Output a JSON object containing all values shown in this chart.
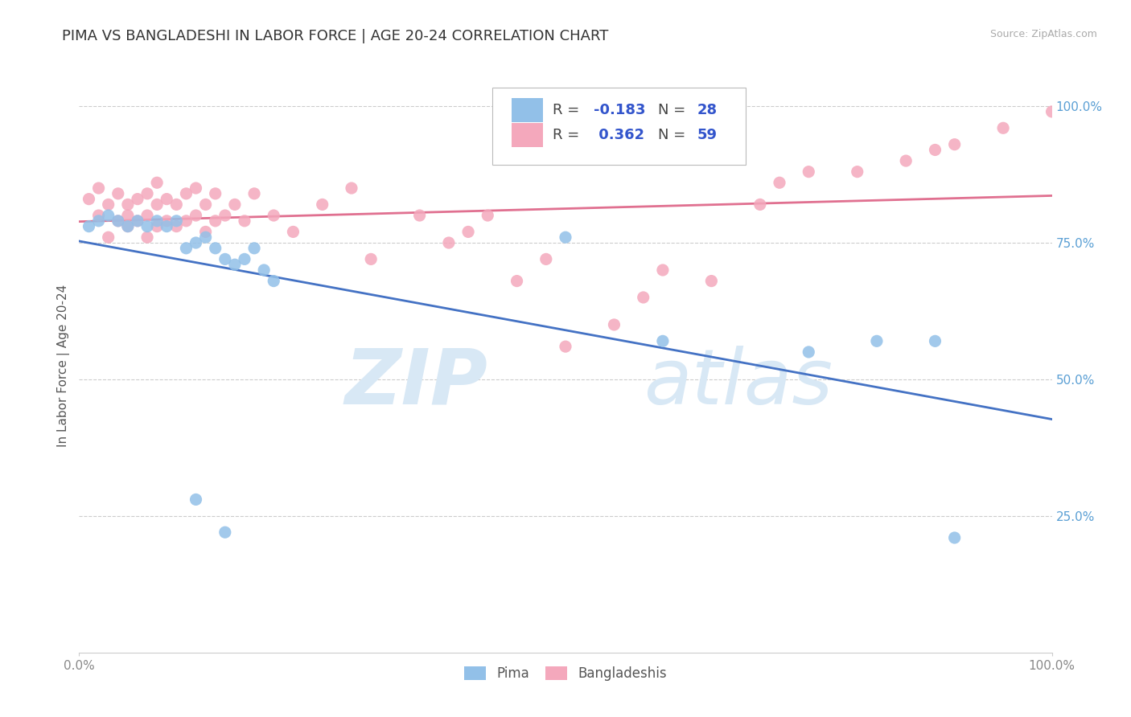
{
  "title": "PIMA VS BANGLADESHI IN LABOR FORCE | AGE 20-24 CORRELATION CHART",
  "source_text": "Source: ZipAtlas.com",
  "ylabel": "In Labor Force | Age 20-24",
  "xlim": [
    0.0,
    1.0
  ],
  "ylim": [
    0.0,
    1.05
  ],
  "pima_color": "#92c0e8",
  "bangladeshi_color": "#f4a8bc",
  "pima_line_color": "#4472c4",
  "bangladeshi_line_color": "#e07090",
  "legend_pima_label": "Pima",
  "legend_bangladeshi_label": "Bangladeshis",
  "pima_R": -0.183,
  "pima_N": 28,
  "bangladeshi_R": 0.362,
  "bangladeshi_N": 59,
  "pima_x": [
    0.01,
    0.02,
    0.03,
    0.04,
    0.05,
    0.06,
    0.07,
    0.08,
    0.09,
    0.1,
    0.11,
    0.12,
    0.13,
    0.14,
    0.15,
    0.16,
    0.17,
    0.18,
    0.19,
    0.2,
    0.12,
    0.15,
    0.5,
    0.6,
    0.75,
    0.82,
    0.88,
    0.9
  ],
  "pima_y": [
    0.78,
    0.79,
    0.8,
    0.79,
    0.78,
    0.79,
    0.78,
    0.79,
    0.78,
    0.79,
    0.74,
    0.75,
    0.76,
    0.74,
    0.72,
    0.71,
    0.72,
    0.74,
    0.7,
    0.68,
    0.28,
    0.22,
    0.76,
    0.57,
    0.55,
    0.57,
    0.57,
    0.21
  ],
  "bangladeshi_x": [
    0.01,
    0.02,
    0.02,
    0.03,
    0.03,
    0.04,
    0.04,
    0.05,
    0.05,
    0.05,
    0.06,
    0.06,
    0.07,
    0.07,
    0.07,
    0.08,
    0.08,
    0.08,
    0.09,
    0.09,
    0.1,
    0.1,
    0.11,
    0.11,
    0.12,
    0.12,
    0.13,
    0.13,
    0.14,
    0.14,
    0.15,
    0.16,
    0.17,
    0.18,
    0.2,
    0.22,
    0.25,
    0.28,
    0.3,
    0.35,
    0.38,
    0.4,
    0.42,
    0.45,
    0.48,
    0.5,
    0.55,
    0.58,
    0.6,
    0.65,
    0.7,
    0.72,
    0.75,
    0.8,
    0.85,
    0.88,
    0.9,
    0.95,
    1.0
  ],
  "bangladeshi_y": [
    0.83,
    0.8,
    0.85,
    0.76,
    0.82,
    0.79,
    0.84,
    0.8,
    0.78,
    0.82,
    0.79,
    0.83,
    0.76,
    0.8,
    0.84,
    0.78,
    0.82,
    0.86,
    0.79,
    0.83,
    0.78,
    0.82,
    0.79,
    0.84,
    0.8,
    0.85,
    0.77,
    0.82,
    0.79,
    0.84,
    0.8,
    0.82,
    0.79,
    0.84,
    0.8,
    0.77,
    0.82,
    0.85,
    0.72,
    0.8,
    0.75,
    0.77,
    0.8,
    0.68,
    0.72,
    0.56,
    0.6,
    0.65,
    0.7,
    0.68,
    0.82,
    0.86,
    0.88,
    0.88,
    0.9,
    0.92,
    0.93,
    0.96,
    0.99
  ],
  "background_color": "#ffffff",
  "grid_color": "#cccccc",
  "tick_color_right": "#5a9fd4",
  "title_fontsize": 13,
  "axis_label_fontsize": 11,
  "tick_fontsize": 11,
  "r_value_color": "#3355cc",
  "r_label_color": "#333333",
  "ytick_vals": [
    0.25,
    0.5,
    0.75,
    1.0
  ],
  "ytick_labels": [
    "25.0%",
    "50.0%",
    "75.0%",
    "100.0%"
  ]
}
